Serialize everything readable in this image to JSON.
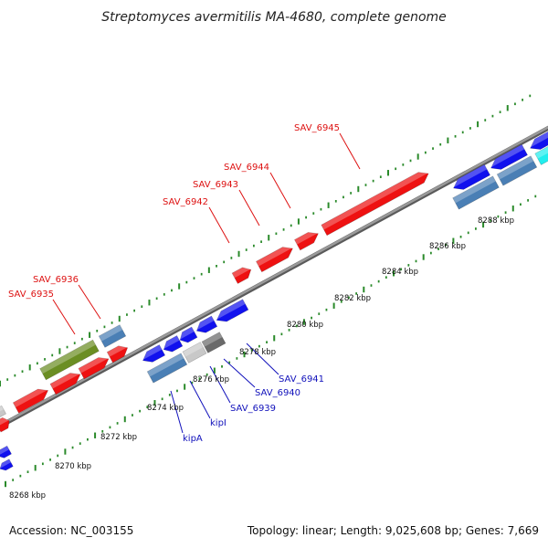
{
  "title": "Streptomyces avermitilis MA-4680, complete genome",
  "footer": {
    "accession": "Accession: NC_003155",
    "summary": "Topology: linear; Length: 9,025,608 bp; Genes: 7,669"
  },
  "colors": {
    "forward_gene": "#ee1111",
    "reverse_gene": "#1111ee",
    "steelblue_gene": "#4a7fb5",
    "olive_gene": "#6b8e23",
    "silver_gene": "#c8c8c8",
    "gray_gene": "#6a6a6a",
    "cyan_gene": "#22eeee",
    "backbone": "#8c8c8c",
    "tick": "#2a8a2a",
    "forward_label": "#dd1111",
    "reverse_label": "#1111bb"
  },
  "ruler": [
    {
      "label": "8268 kbp"
    },
    {
      "label": "8270 kbp"
    },
    {
      "label": "8272 kbp"
    },
    {
      "label": "8274 kbp"
    },
    {
      "label": "8276 kbp"
    },
    {
      "label": "8278 kbp"
    },
    {
      "label": "8280 kbp"
    },
    {
      "label": "8282 kbp"
    },
    {
      "label": "8284 kbp"
    },
    {
      "label": "8286 kbp"
    },
    {
      "label": "8288 kbp"
    }
  ],
  "forward_labels": [
    {
      "name": "SAV_6935"
    },
    {
      "name": "SAV_6936"
    },
    {
      "name": "SAV_6942"
    },
    {
      "name": "SAV_6943"
    },
    {
      "name": "SAV_6944"
    },
    {
      "name": "SAV_6945"
    }
  ],
  "reverse_labels": [
    {
      "name": "kipA"
    },
    {
      "name": "kipI"
    },
    {
      "name": "SAV_6939"
    },
    {
      "name": "SAV_6940"
    },
    {
      "name": "SAV_6941"
    }
  ]
}
